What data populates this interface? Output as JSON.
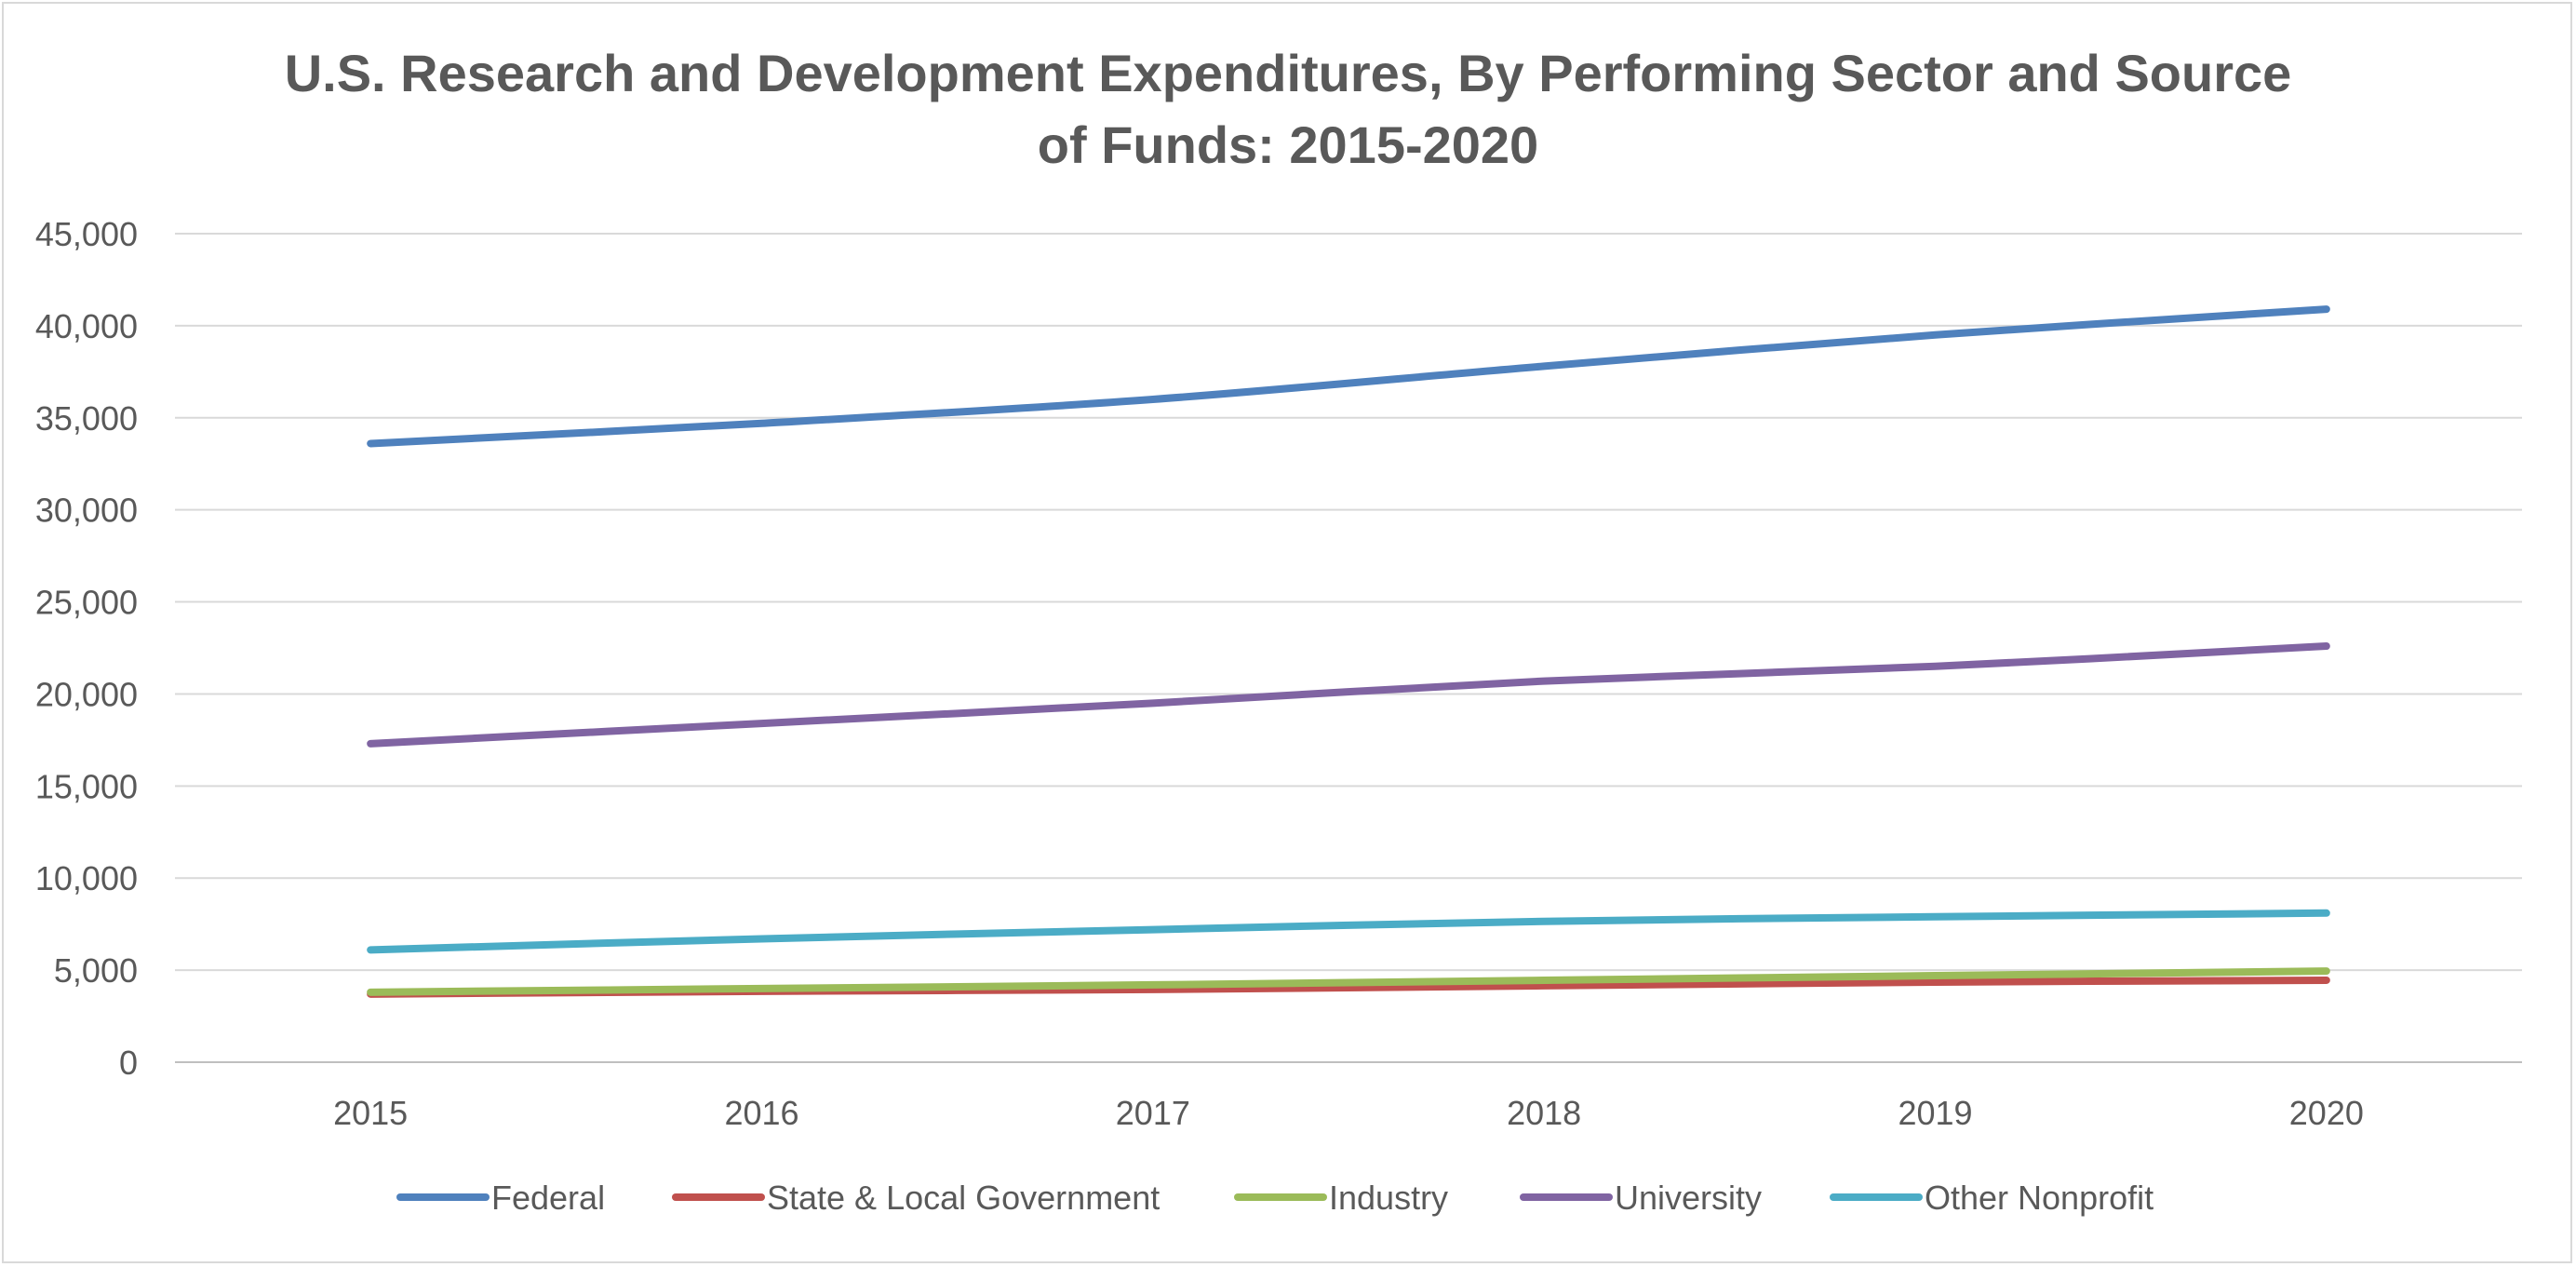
{
  "chart_data": {
    "type": "line",
    "title_lines": [
      "U.S. Research and Development Expenditures, By Performing Sector and Source",
      "of Funds: 2015-2020"
    ],
    "xlabel": "",
    "ylabel": "",
    "x": [
      "2015",
      "2016",
      "2017",
      "2018",
      "2019",
      "2020"
    ],
    "ylim": [
      0,
      45000
    ],
    "yticks": [
      0,
      5000,
      10000,
      15000,
      20000,
      25000,
      30000,
      35000,
      40000,
      45000
    ],
    "ytick_labels": [
      "0",
      "5,000",
      "10,000",
      "15,000",
      "20,000",
      "25,000",
      "30,000",
      "35,000",
      "40,000",
      "45,000"
    ],
    "grid": true,
    "legend_position": "bottom",
    "series": [
      {
        "name": "Federal",
        "color": "#4f81bd",
        "values": [
          33600,
          34700,
          36000,
          37800,
          39500,
          40900
        ]
      },
      {
        "name": "State & Local Government",
        "color": "#c0504d",
        "values": [
          3700,
          3850,
          3950,
          4150,
          4350,
          4450
        ]
      },
      {
        "name": "Industry",
        "color": "#9bbb59",
        "values": [
          3800,
          4000,
          4200,
          4450,
          4700,
          4950
        ]
      },
      {
        "name": "University",
        "color": "#8064a2",
        "values": [
          17300,
          18400,
          19500,
          20700,
          21500,
          22600
        ]
      },
      {
        "name": "Other Nonprofit",
        "color": "#4bacc6",
        "values": [
          6100,
          6700,
          7200,
          7650,
          7900,
          8100
        ]
      }
    ]
  }
}
